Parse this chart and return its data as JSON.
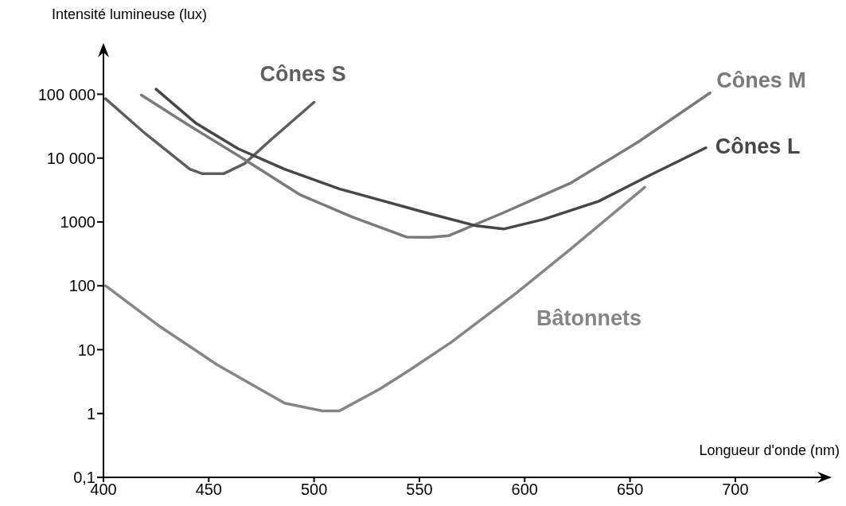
{
  "chart_data": {
    "type": "line",
    "xlabel": "Longueur d'onde (nm)",
    "ylabel": "Intensité lumineuse (lux)",
    "log": "y",
    "marker": "none",
    "line_style": "solid",
    "xlim": [
      400,
      745
    ],
    "ylim": [
      0.1,
      600000
    ],
    "xticks": [
      400,
      450,
      500,
      550,
      600,
      650,
      700
    ],
    "yticks": [
      {
        "value": 0.1,
        "label": "0,1"
      },
      1,
      10,
      100,
      1000,
      {
        "value": 10000,
        "label": "10 000"
      },
      {
        "value": 100000,
        "label": "100 000"
      }
    ],
    "series": [
      {
        "name": "Cônes S",
        "color": "#5e5e5e",
        "x": [
          401,
          420,
          441,
          447,
          457,
          467,
          480,
          500
        ],
        "values": [
          85000,
          24000,
          6700,
          5700,
          5700,
          8200,
          20000,
          75000
        ]
      },
      {
        "name": "Cônes M",
        "color": "#7a7a7a",
        "x": [
          418,
          441,
          467,
          493,
          518,
          544,
          555,
          564,
          590,
          622,
          654,
          688
        ],
        "values": [
          97000,
          32000,
          9500,
          2700,
          1200,
          580,
          575,
          610,
          1400,
          4100,
          18000,
          105000
        ]
      },
      {
        "name": "Cônes L",
        "color": "#474747",
        "x": [
          425,
          444,
          464,
          486,
          512,
          553,
          577,
          590,
          609,
          635,
          660,
          686
        ],
        "values": [
          120000,
          35000,
          14000,
          6700,
          3300,
          1400,
          870,
          775,
          1100,
          2100,
          5500,
          14500
        ]
      },
      {
        "name": "Bâtonnets",
        "color": "#858585",
        "x": [
          401,
          426,
          454,
          486,
          504,
          512,
          531,
          545,
          565,
          596,
          622,
          657
        ],
        "values": [
          100,
          24,
          5.8,
          1.45,
          1.1,
          1.1,
          2.4,
          4.7,
          13,
          77,
          380,
          3500
        ]
      }
    ]
  }
}
